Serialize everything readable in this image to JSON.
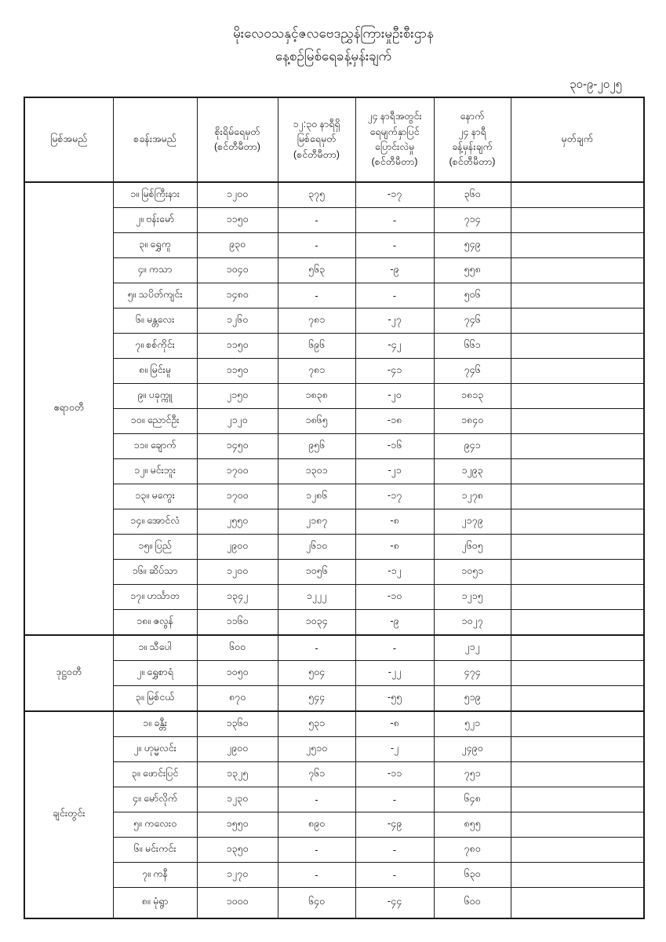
{
  "header": {
    "title": "မိုးလေဝသနှင့်ဇလဗေဒညွှန်ကြားမှုဦးစီးဌာန",
    "subtitle": "နေ့စဉ်မြစ်ရေခန့်မှန်းချက်",
    "date": "၃၀-၉-၂၀၂၅"
  },
  "table": {
    "headers": [
      "မြစ်အမည်",
      "စခန်းအမည်",
      "စိုးရိမ်ရေမှတ်\n(စင်တီမီတာ)",
      "၁၂:၃၀ နာရီရှိ\nမြစ်ရေမှတ်\n(စင်တီမီတာ)",
      "၂၄ နာရီအတွင်း\nရေမျက်နှာပြင်\nပြောင်းလဲမှု\n(စင်တီမီတာ)",
      "နောက်\n၂၄ နာရီ\nခန့်မှန်းချက်\n(စင်တီမီတာ)",
      "မှတ်ချက်"
    ],
    "groups": [
      {
        "river": "ဧရာဝတီ",
        "rows": [
          {
            "station": "၁။ မြစ်ကြီးနား",
            "danger": "၁၂၀၀",
            "level": "၃၇၅",
            "change": "-၁၇",
            "forecast": "၃၆၀",
            "remark": ""
          },
          {
            "station": "၂။ ဗန်းမော်",
            "danger": "၁၁၅၀",
            "level": "-",
            "change": "-",
            "forecast": "၇၁၄",
            "remark": ""
          },
          {
            "station": "၃။ ရွှေကူ",
            "danger": "၉၃၀",
            "level": "-",
            "change": "-",
            "forecast": "၅၄၉",
            "remark": ""
          },
          {
            "station": "၄။ ကသာ",
            "danger": "၁၀၄၀",
            "level": "၅၆၃",
            "change": "-၉",
            "forecast": "၅၅၈",
            "remark": ""
          },
          {
            "station": "၅။ သပိတ်ကျင်း",
            "danger": "၁၄၈၀",
            "level": "-",
            "change": "-",
            "forecast": "၅၀၆",
            "remark": ""
          },
          {
            "station": "၆။ မန္တလေး",
            "danger": "၁၂၆၀",
            "level": "၇၈၁",
            "change": "-၂၇",
            "forecast": "၇၄၆",
            "remark": ""
          },
          {
            "station": "၇။ စစ်ကိုင်း",
            "danger": "၁၁၅၀",
            "level": "၆၉၆",
            "change": "-၄၂",
            "forecast": "၆၆၁",
            "remark": ""
          },
          {
            "station": "၈။ မြင်းမူ",
            "danger": "၁၁၅၀",
            "level": "၇၈၁",
            "change": "-၄၁",
            "forecast": "၇၄၆",
            "remark": ""
          },
          {
            "station": "၉။ ပခုက္ကူ",
            "danger": "၂၁၅၀",
            "level": "၁၈၃၈",
            "change": "-၂၀",
            "forecast": "၁၈၁၃",
            "remark": ""
          },
          {
            "station": "၁၀။ ညောင်ဦး",
            "danger": "၂၁၂၀",
            "level": "၁၈၆၅",
            "change": "-၁၈",
            "forecast": "၁၈၄၀",
            "remark": ""
          },
          {
            "station": "၁၁။ ချောက်",
            "danger": "၁၄၅၀",
            "level": "၉၅၆",
            "change": "-၁၆",
            "forecast": "၉၄၁",
            "remark": ""
          },
          {
            "station": "၁၂။ မင်းဘူး",
            "danger": "၁၇၀၀",
            "level": "၁၃၀၁",
            "change": "-၂၁",
            "forecast": "၁၂၉၃",
            "remark": ""
          },
          {
            "station": "၁၃။ မကွေး",
            "danger": "၁၇၀၀",
            "level": "၁၂၈၆",
            "change": "-၁၇",
            "forecast": "၁၂၇၈",
            "remark": ""
          },
          {
            "station": "၁၄။ အောင်လံ",
            "danger": "၂၅၅၀",
            "level": "၂၁၈၇",
            "change": "-၈",
            "forecast": "၂၁၇၉",
            "remark": ""
          },
          {
            "station": "၁၅။ ပြည်",
            "danger": "၂၉၀၀",
            "level": "၂၆၁၀",
            "change": "-၈",
            "forecast": "၂၆၀၅",
            "remark": ""
          },
          {
            "station": "၁၆။ ဆိပ်သာ",
            "danger": "၁၂၀၀",
            "level": "၁၀၅၆",
            "change": "-၁၂",
            "forecast": "၁၀၅၁",
            "remark": ""
          },
          {
            "station": "၁၇။ ဟင်္သာတ",
            "danger": "၁၃၄၂",
            "level": "၁၂၂၂",
            "change": "-၁၀",
            "forecast": "၁၂၁၅",
            "remark": ""
          },
          {
            "station": "၁၈။ ဇလွန်",
            "danger": "၁၁၆၀",
            "level": "၁၀၃၄",
            "change": "-၉",
            "forecast": "၁၀၂၇",
            "remark": ""
          }
        ]
      },
      {
        "river": "ဒုဋ္ဌဝတီ",
        "rows": [
          {
            "station": "၁။ သီပေါ",
            "danger": "၆၀၀",
            "level": "-",
            "change": "-",
            "forecast": "၂၁၂",
            "remark": ""
          },
          {
            "station": "၂။ ရွှေစာရံ",
            "danger": "၁၀၅၀",
            "level": "၅၀၄",
            "change": "-၂၂",
            "forecast": "၄၇၄",
            "remark": ""
          },
          {
            "station": "၃။ မြစ်ငယ်",
            "danger": "၈၇၀",
            "level": "၅၄၄",
            "change": "-၅၅",
            "forecast": "၅၁၉",
            "remark": ""
          }
        ]
      },
      {
        "river": "ချင်းတွင်း",
        "rows": [
          {
            "station": "၁။ ခန္တီး",
            "danger": "၁၃၆၀",
            "level": "၅၃၁",
            "change": "-၈",
            "forecast": "၅၂၁",
            "remark": ""
          },
          {
            "station": "၂။ ဟုမ္မလင်း",
            "danger": "၂၉၀၀",
            "level": "၂၅၁၀",
            "change": "-၂",
            "forecast": "၂၄၉၀",
            "remark": ""
          },
          {
            "station": "၃။ ဖောင်းပြင်",
            "danger": "၁၃၂၅",
            "level": "၇၆၁",
            "change": "-၁၁",
            "forecast": "၇၅၁",
            "remark": ""
          },
          {
            "station": "၄။ မော်လိုက်",
            "danger": "၁၂၃၀",
            "level": "-",
            "change": "-",
            "forecast": "၆၄၈",
            "remark": ""
          },
          {
            "station": "၅။ ကလေးဝ",
            "danger": "၁၅၅၀",
            "level": "၈၉၀",
            "change": "-၄၉",
            "forecast": "၈၅၅",
            "remark": ""
          },
          {
            "station": "၆။ မင်းကင်း",
            "danger": "၁၃၅၀",
            "level": "-",
            "change": "-",
            "forecast": "၇၈၀",
            "remark": ""
          },
          {
            "station": "၇။ ကနီ",
            "danger": "၁၂၇၀",
            "level": "-",
            "change": "-",
            "forecast": "၆၃၀",
            "remark": ""
          },
          {
            "station": "၈။ မုံရွာ",
            "danger": "၁၀၀၀",
            "level": "၆၄၀",
            "change": "-၄၄",
            "forecast": "၆၀၀",
            "remark": ""
          }
        ]
      }
    ]
  }
}
